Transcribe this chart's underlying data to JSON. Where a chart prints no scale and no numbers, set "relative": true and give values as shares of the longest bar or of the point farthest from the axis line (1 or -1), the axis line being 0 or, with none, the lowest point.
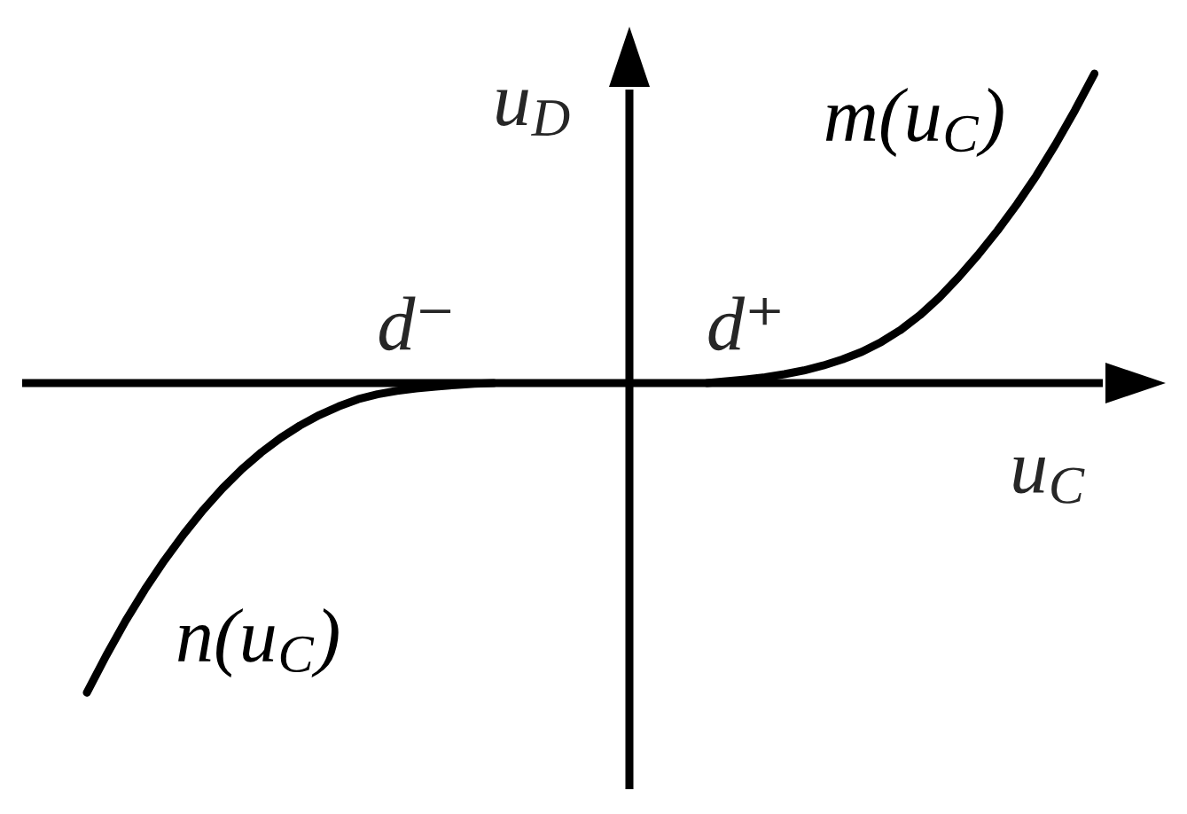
{
  "chart_data": {
    "type": "line",
    "relative": true,
    "xlabel": "u$_{C}$",
    "ylabel": "u$_{D}$",
    "categories": [
      null,
      null,
      null,
      null,
      null,
      null,
      null,
      null,
      null,
      null,
      null,
      null,
      null,
      null,
      null,
      null,
      null,
      "d⁻",
      null,
      null,
      null,
      null,
      null,
      null,
      null,
      null,
      null,
      null,
      null,
      null,
      null,
      null,
      null,
      null,
      "d⁺",
      null,
      null,
      null,
      null,
      null,
      null,
      null,
      null,
      null,
      null,
      null,
      null,
      null,
      null,
      null,
      null,
      null,
      null,
      null,
      null,
      null,
      null
    ],
    "series": [
      {
        "name": "n(u$_{C}$)",
        "color": "#000000",
        "values": [
          -1.0,
          -0.88,
          -0.768,
          -0.666,
          -0.573,
          -0.488,
          -0.41,
          -0.34,
          -0.278,
          -0.224,
          -0.177,
          -0.137,
          -0.103,
          -0.075,
          -0.052,
          -0.036,
          -0.025,
          -0.017,
          -0.011,
          -0.006,
          -0.002,
          0,
          null,
          null,
          null,
          null,
          null,
          null,
          null,
          null,
          null,
          null,
          null,
          null,
          null,
          null,
          null,
          null,
          null,
          null,
          null,
          null,
          null,
          null,
          null,
          null,
          null,
          null,
          null,
          null,
          null,
          null,
          null,
          null,
          null,
          null,
          null
        ]
      },
      {
        "name": "m(u$_{C}$)",
        "color": "#000000",
        "values": [
          null,
          null,
          null,
          null,
          null,
          null,
          null,
          null,
          null,
          null,
          null,
          null,
          null,
          null,
          null,
          null,
          null,
          null,
          null,
          null,
          null,
          null,
          null,
          null,
          null,
          null,
          null,
          null,
          null,
          null,
          null,
          null,
          0,
          0.006,
          0.012,
          0.019,
          0.029,
          0.041,
          0.057,
          0.077,
          0.101,
          0.133,
          0.172,
          0.22,
          0.277,
          0.343,
          0.415,
          0.493,
          0.578,
          0.67,
          0.772,
          0.882,
          1.0,
          null,
          null,
          null,
          null
        ]
      }
    ],
    "tick_labels": "x",
    "line_style": "solid"
  }
}
